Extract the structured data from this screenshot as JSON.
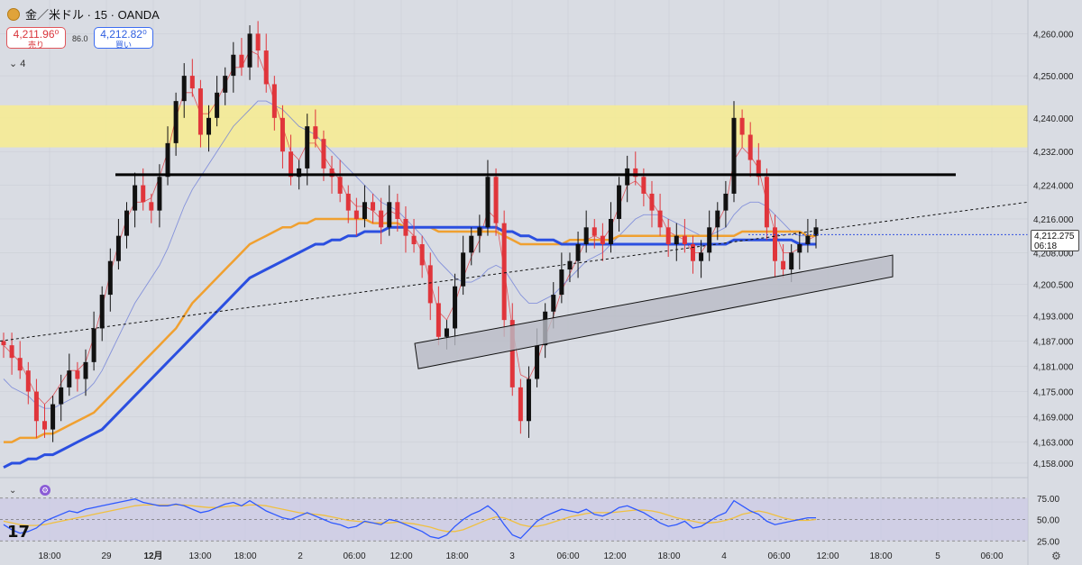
{
  "header": {
    "symbol_title": "金／米ドル · 15 · OANDA",
    "sell_price": "4,211.96⁰",
    "sell_label": "売り",
    "spread": "86.0",
    "buy_price": "4,212.82⁰",
    "buy_label": "買い",
    "indicators_collapsed": "⌄ 4"
  },
  "price_tag": {
    "price": "4,212.275",
    "countdown": "06:18"
  },
  "colors": {
    "background": "#d9dce3",
    "candle_up": "#111111",
    "candle_down": "#e0353b",
    "ma_fast": "#e0353b",
    "ma_mid_light": "#6f7fd8",
    "ma_orange": "#f0a030",
    "ma_blue": "#2b4fe0",
    "resistance_zone": "#f7ec8f",
    "rsi_line": "#2f59ff",
    "rsi_signal": "#f0c040",
    "rsi_band": "#c9c6e6"
  },
  "icons": {
    "coin": "gold-coin-icon",
    "collapse": "chevron-down-icon",
    "settings": "gear-icon",
    "logo": "tradingview-logo"
  },
  "chart_data": {
    "type": "candlestick",
    "title": "金／米ドル · 15 · OANDA",
    "ylim": [
      4155,
      4268
    ],
    "y_ticks": [
      "4,260.000",
      "4,250.000",
      "4,240.000",
      "4,232.000",
      "4,224.000",
      "4,216.000",
      "4,208.000",
      "4,200.500",
      "4,193.000",
      "4,187.000",
      "4,181.000",
      "4,175.000",
      "4,169.000",
      "4,163.000",
      "4,158.000"
    ],
    "x_ticks": [
      "18:00",
      "29",
      "12月",
      "13:00",
      "18:00",
      "2",
      "06:00",
      "12:00",
      "18:00",
      "3",
      "06:00",
      "12:00",
      "18:00",
      "4",
      "06:00",
      "12:00",
      "18:00",
      "5",
      "06:00"
    ],
    "ohlc_close_path": [
      4186,
      4183,
      4180,
      4175,
      4168,
      4166,
      4172,
      4176,
      4180,
      4178,
      4182,
      4190,
      4198,
      4206,
      4212,
      4218,
      4224,
      4220,
      4218,
      4226,
      4234,
      4244,
      4250,
      4247,
      4236,
      4240,
      4246,
      4250,
      4255,
      4252,
      4260,
      4256,
      4248,
      4240,
      4232,
      4226,
      4228,
      4238,
      4235,
      4228,
      4226,
      4222,
      4218,
      4216,
      4220,
      4218,
      4214,
      4220,
      4216,
      4212,
      4210,
      4205,
      4196,
      4188,
      4190,
      4200,
      4208,
      4212,
      4214,
      4226,
      4215,
      4192,
      4176,
      4168,
      4178,
      4186,
      4194,
      4198,
      4204,
      4206,
      4210,
      4214,
      4212,
      4210,
      4216,
      4224,
      4228,
      4226,
      4222,
      4218,
      4214,
      4210,
      4212,
      4210,
      4206,
      4208,
      4214,
      4218,
      4222,
      4240,
      4236,
      4230,
      4226,
      4214,
      4206,
      4204,
      4208,
      4210,
      4212,
      4214
    ],
    "resistance_zone": [
      4233,
      4243
    ],
    "horizontal_line": 4226.5,
    "trendline_points": [
      {
        "x": "18:00",
        "y": 4187
      },
      {
        "x": "5",
        "y": 4220
      }
    ],
    "support_channel": [
      {
        "x": "12:00",
        "y": 4186
      },
      {
        "x": "4",
        "y": 4201
      }
    ],
    "current_price": 4212.275,
    "series": [
      {
        "type": "line",
        "values": [
          4186,
          4184,
          4182,
          4178,
          4174,
          4172,
          4174,
          4177,
          4180,
          4180,
          4182,
          4188,
          4195,
          4203,
          4210,
          4216,
          4220,
          4220,
          4221,
          4226,
          4232,
          4240,
          4246,
          4246,
          4241,
          4241,
          4244,
          4248,
          4252,
          4252,
          4256,
          4255,
          4250,
          4244,
          4238,
          4232,
          4230,
          4234,
          4234,
          4231,
          4228,
          4225,
          4221,
          4219,
          4219,
          4218,
          4216,
          4218,
          4217,
          4214,
          4212,
          4208,
          4201,
          4194,
          4192,
          4196,
          4202,
          4207,
          4211,
          4218,
          4216,
          4204,
          4190,
          4179,
          4178,
          4182,
          4188,
          4193,
          4199,
          4203,
          4207,
          4211,
          4212,
          4211,
          4214,
          4219,
          4224,
          4225,
          4223,
          4220,
          4217,
          4213,
          4212,
          4211,
          4208,
          4208,
          4211,
          4215,
          4219,
          4230,
          4233,
          4231,
          4228,
          4220,
          4213,
          4208,
          4208,
          4209,
          4211,
          4212
        ]
      },
      {
        "type": "line",
        "values": [
          4178,
          4176,
          4175,
          4174,
          4172,
          4171,
          4171,
          4172,
          4173,
          4174,
          4175,
          4177,
          4180,
          4184,
          4188,
          4192,
          4196,
          4199,
          4202,
          4205,
          4209,
          4214,
          4219,
          4223,
          4226,
          4229,
          4232,
          4235,
          4238,
          4240,
          4242,
          4244,
          4244,
          4243,
          4242,
          4240,
          4238,
          4237,
          4236,
          4234,
          4232,
          4230,
          4228,
          4226,
          4224,
          4222,
          4220,
          4219,
          4218,
          4216,
          4214,
          4212,
          4209,
          4206,
          4204,
          4202,
          4201,
          4201,
          4202,
          4204,
          4205,
          4204,
          4201,
          4198,
          4196,
          4196,
          4197,
          4198,
          4200,
          4202,
          4204,
          4206,
          4207,
          4208,
          4210,
          4212,
          4214,
          4216,
          4217,
          4217,
          4217,
          4216,
          4215,
          4214,
          4213,
          4212,
          4212,
          4213,
          4214,
          4217,
          4219,
          4220,
          4220,
          4219,
          4217,
          4215,
          4213,
          4212,
          4212,
          4212
        ]
      },
      {
        "type": "line",
        "values": [
          4163,
          4163,
          4164,
          4164,
          4164,
          4165,
          4165,
          4166,
          4167,
          4168,
          4169,
          4170,
          4172,
          4174,
          4176,
          4178,
          4180,
          4182,
          4184,
          4186,
          4188,
          4190,
          4193,
          4196,
          4198,
          4200,
          4202,
          4204,
          4206,
          4208,
          4210,
          4211,
          4212,
          4213,
          4214,
          4214,
          4215,
          4215,
          4216,
          4216,
          4216,
          4216,
          4216,
          4216,
          4216,
          4215,
          4215,
          4215,
          4215,
          4214,
          4214,
          4214,
          4214,
          4213,
          4213,
          4213,
          4213,
          4213,
          4213,
          4213,
          4213,
          4212,
          4211,
          4210,
          4210,
          4210,
          4210,
          4210,
          4210,
          4211,
          4211,
          4211,
          4211,
          4211,
          4211,
          4212,
          4212,
          4212,
          4212,
          4212,
          4212,
          4212,
          4212,
          4212,
          4212,
          4212,
          4212,
          4212,
          4212,
          4212,
          4213,
          4213,
          4213,
          4213,
          4213,
          4213,
          4213,
          4213,
          4212,
          4212
        ]
      },
      {
        "type": "line",
        "values": [
          4157,
          4158,
          4158,
          4159,
          4159,
          4160,
          4160,
          4161,
          4162,
          4163,
          4164,
          4165,
          4166,
          4168,
          4170,
          4172,
          4174,
          4176,
          4178,
          4180,
          4182,
          4184,
          4186,
          4188,
          4190,
          4192,
          4194,
          4196,
          4198,
          4200,
          4202,
          4203,
          4204,
          4205,
          4206,
          4207,
          4208,
          4209,
          4210,
          4210,
          4211,
          4211,
          4212,
          4212,
          4213,
          4213,
          4213,
          4214,
          4214,
          4214,
          4214,
          4214,
          4214,
          4214,
          4214,
          4214,
          4214,
          4214,
          4214,
          4214,
          4214,
          4213,
          4213,
          4212,
          4212,
          4211,
          4211,
          4211,
          4210,
          4210,
          4210,
          4210,
          4210,
          4210,
          4210,
          4210,
          4210,
          4210,
          4210,
          4210,
          4210,
          4210,
          4210,
          4210,
          4210,
          4210,
          4210,
          4210,
          4210,
          4211,
          4211,
          4211,
          4211,
          4211,
          4211,
          4211,
          4211,
          4210,
          4210,
          4210
        ]
      }
    ],
    "rsi": {
      "ylim": [
        20,
        80
      ],
      "levels": [
        75,
        50,
        25
      ],
      "level_labels": [
        "75.00",
        "50.00",
        "25.00"
      ],
      "values": [
        44,
        38,
        34,
        36,
        40,
        48,
        52,
        56,
        60,
        58,
        62,
        64,
        66,
        68,
        70,
        72,
        74,
        70,
        68,
        66,
        66,
        68,
        66,
        62,
        58,
        60,
        64,
        68,
        70,
        66,
        72,
        66,
        60,
        56,
        52,
        50,
        54,
        58,
        54,
        50,
        46,
        44,
        40,
        42,
        48,
        46,
        44,
        50,
        48,
        44,
        40,
        36,
        30,
        28,
        32,
        42,
        50,
        56,
        60,
        66,
        58,
        44,
        32,
        28,
        38,
        48,
        54,
        58,
        62,
        60,
        58,
        62,
        56,
        54,
        58,
        64,
        66,
        62,
        58,
        52,
        46,
        42,
        44,
        48,
        40,
        42,
        48,
        54,
        58,
        72,
        66,
        60,
        56,
        48,
        44,
        46,
        48,
        50,
        52,
        52
      ],
      "signal": [
        48,
        46,
        44,
        43,
        43,
        44,
        46,
        48,
        50,
        52,
        54,
        56,
        58,
        60,
        62,
        64,
        66,
        67,
        67,
        67,
        67,
        67,
        67,
        66,
        65,
        64,
        64,
        65,
        66,
        66,
        67,
        67,
        66,
        64,
        62,
        60,
        58,
        57,
        56,
        55,
        53,
        51,
        49,
        48,
        47,
        46,
        46,
        46,
        47,
        46,
        45,
        43,
        41,
        38,
        36,
        36,
        38,
        42,
        46,
        50,
        53,
        52,
        48,
        44,
        42,
        42,
        44,
        47,
        50,
        53,
        55,
        57,
        58,
        58,
        58,
        59,
        60,
        61,
        61,
        60,
        58,
        55,
        52,
        50,
        48,
        46,
        46,
        47,
        49,
        52,
        56,
        58,
        60,
        58,
        55,
        52,
        50,
        49,
        49,
        50
      ]
    }
  }
}
